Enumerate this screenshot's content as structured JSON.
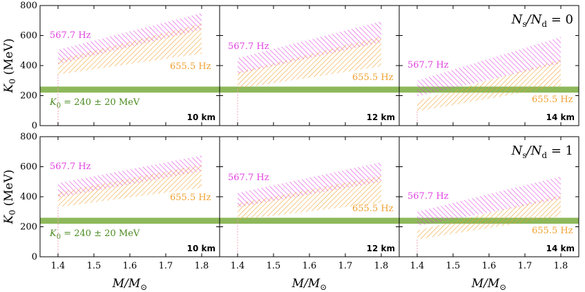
{
  "chart_data": {
    "type": "area",
    "layout": "2x3 panel grid",
    "x_axis": {
      "label_main": "M/M",
      "label_sub": "⊙",
      "range": [
        1.35,
        1.85
      ],
      "ticks": [
        1.4,
        1.5,
        1.6,
        1.7,
        1.8
      ],
      "tick_labels": [
        "1.4",
        "1.5",
        "1.6",
        "1.7",
        "1.8"
      ]
    },
    "y_axis": {
      "label_main": "K",
      "label_sub": "0",
      "label_unit": " (MeV)",
      "range": [
        0,
        800
      ],
      "ticks": [
        0,
        200,
        400,
        600,
        800
      ],
      "tick_labels": [
        "0",
        "200",
        "400",
        "600",
        "800"
      ]
    },
    "band": {
      "range": [
        220,
        260
      ],
      "label_sym": "K",
      "label_sub": "0",
      "label_text": " = 240 ± 20 MeV",
      "color": "#8db85a"
    },
    "series_colors": {
      "magenta": "#e040e0",
      "orange": "#f0a030"
    },
    "row_labels": [
      {
        "prefix": "N",
        "sub1": "s",
        "mid": "/N",
        "sub2": "d",
        "suffix": " = 0"
      },
      {
        "prefix": "N",
        "sub1": "s",
        "mid": "/N",
        "sub2": "d",
        "suffix": " = 1"
      }
    ],
    "panels": [
      {
        "row": 0,
        "col": 0,
        "radius_label": "10 km",
        "series": [
          {
            "name": "567.7 Hz",
            "x": [
              1.4,
              1.8
            ],
            "upper": [
              505,
              750
            ],
            "lower": [
              410,
              640
            ]
          },
          {
            "name": "655.5 Hz",
            "x": [
              1.4,
              1.8
            ],
            "upper": [
              440,
              680
            ],
            "lower": [
              340,
              480
            ]
          }
        ]
      },
      {
        "row": 0,
        "col": 1,
        "radius_label": "12 km",
        "series": [
          {
            "name": "567.7 Hz",
            "x": [
              1.4,
              1.8
            ],
            "upper": [
              450,
              695
            ],
            "lower": [
              345,
              555
            ]
          },
          {
            "name": "655.5 Hz",
            "x": [
              1.4,
              1.8
            ],
            "upper": [
              355,
              595
            ],
            "lower": [
              245,
              395
            ]
          }
        ]
      },
      {
        "row": 0,
        "col": 2,
        "radius_label": "14 km",
        "series": [
          {
            "name": "567.7 Hz",
            "x": [
              1.4,
              1.8
            ],
            "upper": [
              300,
              590
            ],
            "lower": [
              195,
              415
            ]
          },
          {
            "name": "655.5 Hz",
            "x": [
              1.4,
              1.8
            ],
            "upper": [
              165,
              440
            ],
            "lower": [
              95,
              265
            ]
          }
        ]
      },
      {
        "row": 1,
        "col": 0,
        "radius_label": "10 km",
        "series": [
          {
            "name": "567.7 Hz",
            "x": [
              1.4,
              1.8
            ],
            "upper": [
              490,
              675
            ],
            "lower": [
              395,
              570
            ]
          },
          {
            "name": "655.5 Hz",
            "x": [
              1.4,
              1.8
            ],
            "upper": [
              430,
              615
            ],
            "lower": [
              330,
              460
            ]
          }
        ]
      },
      {
        "row": 1,
        "col": 1,
        "radius_label": "12 km",
        "series": [
          {
            "name": "567.7 Hz",
            "x": [
              1.4,
              1.8
            ],
            "upper": [
              425,
              630
            ],
            "lower": [
              330,
              500
            ]
          },
          {
            "name": "655.5 Hz",
            "x": [
              1.4,
              1.8
            ],
            "upper": [
              355,
              540
            ],
            "lower": [
              245,
              360
            ]
          }
        ]
      },
      {
        "row": 1,
        "col": 2,
        "radius_label": "14 km",
        "series": [
          {
            "name": "567.7 Hz",
            "x": [
              1.4,
              1.8
            ],
            "upper": [
              300,
              535
            ],
            "lower": [
              205,
              385
            ]
          },
          {
            "name": "655.5 Hz",
            "x": [
              1.4,
              1.8
            ],
            "upper": [
              175,
              410
            ],
            "lower": [
              115,
              270
            ]
          }
        ]
      }
    ]
  }
}
